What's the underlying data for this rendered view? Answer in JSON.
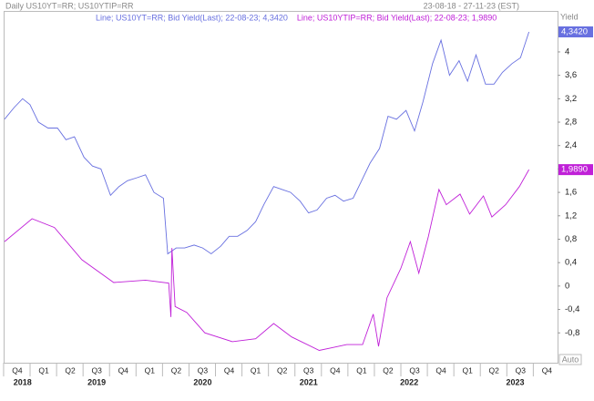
{
  "chart_data": {
    "type": "line",
    "title": "Daily US10YT=RR; US10YTIP=RR",
    "date_range": "23-08-18 - 27-11-23 (EST)",
    "y_label": "Yield",
    "scale_mode": "Auto",
    "xlim": [
      2018.63,
      2023.85
    ],
    "ylim": [
      -1.31,
      4.7
    ],
    "yticks": [
      4,
      {
        "value": 3.6,
        "label": "3,6"
      },
      {
        "value": 3.2,
        "label": "3,2"
      },
      {
        "value": 2.8,
        "label": "2,8"
      },
      {
        "value": 2.4,
        "label": "2,4"
      },
      2,
      {
        "value": 1.6,
        "label": "1,6"
      },
      {
        "value": 1.2,
        "label": "1,2"
      },
      {
        "value": 0.8,
        "label": "0,8"
      },
      {
        "value": 0.4,
        "label": "0,4"
      },
      0,
      {
        "value": -0.4,
        "label": "-0,4"
      },
      {
        "value": -0.8,
        "label": "-0,8"
      }
    ],
    "xticks": [
      {
        "value": 2018.75,
        "label": "Q4"
      },
      {
        "value": 2019.0,
        "label": "Q1"
      },
      {
        "value": 2019.25,
        "label": "Q2"
      },
      {
        "value": 2019.5,
        "label": "Q3"
      },
      {
        "value": 2019.75,
        "label": "Q4"
      },
      {
        "value": 2020.0,
        "label": "Q1"
      },
      {
        "value": 2020.25,
        "label": "Q2"
      },
      {
        "value": 2020.5,
        "label": "Q3"
      },
      {
        "value": 2020.75,
        "label": "Q4"
      },
      {
        "value": 2021.0,
        "label": "Q1"
      },
      {
        "value": 2021.25,
        "label": "Q2"
      },
      {
        "value": 2021.5,
        "label": "Q3"
      },
      {
        "value": 2021.75,
        "label": "Q4"
      },
      {
        "value": 2022.0,
        "label": "Q1"
      },
      {
        "value": 2022.25,
        "label": "Q2"
      },
      {
        "value": 2022.5,
        "label": "Q3"
      },
      {
        "value": 2022.75,
        "label": "Q4"
      },
      {
        "value": 2023.0,
        "label": "Q1"
      },
      {
        "value": 2023.25,
        "label": "Q2"
      },
      {
        "value": 2023.5,
        "label": "Q3"
      },
      {
        "value": 2023.75,
        "label": "Q4"
      }
    ],
    "year_ticks": [
      {
        "value": 2018.8,
        "label": "2018"
      },
      {
        "value": 2019.5,
        "label": "2019"
      },
      {
        "value": 2020.5,
        "label": "2020"
      },
      {
        "value": 2021.5,
        "label": "2021"
      },
      {
        "value": 2022.45,
        "label": "2022"
      },
      {
        "value": 2023.45,
        "label": "2023"
      }
    ],
    "series": [
      {
        "name": "Line; US10YT=RR; Bid Yield(Last); 22-08-23; 4,3420",
        "color": "#6870e0",
        "last_label": "4,3420",
        "x": [
          2018.63,
          2018.72,
          2018.8,
          2018.87,
          2018.95,
          2019.04,
          2019.13,
          2019.21,
          2019.29,
          2019.38,
          2019.46,
          2019.54,
          2019.63,
          2019.71,
          2019.79,
          2019.88,
          2019.96,
          2020.04,
          2020.13,
          2020.17,
          2020.25,
          2020.33,
          2020.42,
          2020.5,
          2020.58,
          2020.67,
          2020.75,
          2020.83,
          2020.92,
          2021.0,
          2021.08,
          2021.17,
          2021.25,
          2021.33,
          2021.42,
          2021.5,
          2021.58,
          2021.67,
          2021.75,
          2021.83,
          2021.92,
          2022.0,
          2022.08,
          2022.17,
          2022.25,
          2022.33,
          2022.42,
          2022.5,
          2022.58,
          2022.67,
          2022.75,
          2022.83,
          2022.92,
          2023.0,
          2023.08,
          2023.17,
          2023.25,
          2023.33,
          2023.42,
          2023.5,
          2023.58
        ],
        "values": [
          2.85,
          3.05,
          3.2,
          3.1,
          2.8,
          2.7,
          2.7,
          2.5,
          2.55,
          2.2,
          2.05,
          2.0,
          1.55,
          1.7,
          1.8,
          1.85,
          1.9,
          1.6,
          1.5,
          0.55,
          0.65,
          0.65,
          0.7,
          0.65,
          0.55,
          0.68,
          0.85,
          0.85,
          0.95,
          1.1,
          1.4,
          1.7,
          1.65,
          1.6,
          1.45,
          1.25,
          1.3,
          1.5,
          1.55,
          1.45,
          1.5,
          1.8,
          2.1,
          2.35,
          2.9,
          2.85,
          3.0,
          2.65,
          3.15,
          3.8,
          4.2,
          3.6,
          3.85,
          3.5,
          3.95,
          3.45,
          3.45,
          3.65,
          3.8,
          3.9,
          4.342
        ]
      },
      {
        "name": "Line; US10YTIP=RR; Bid Yield(Last); 22-08-23; 1,9890",
        "color": "#c020d8",
        "last_label": "1,9890",
        "x": [
          2018.63,
          2018.89,
          2019.1,
          2019.36,
          2019.66,
          2019.96,
          2020.18,
          2020.2,
          2020.21,
          2020.24,
          2020.35,
          2020.52,
          2020.78,
          2021.0,
          2021.17,
          2021.34,
          2021.6,
          2021.86,
          2022.01,
          2022.11,
          2022.16,
          2022.24,
          2022.37,
          2022.46,
          2022.54,
          2022.63,
          2022.73,
          2022.8,
          2022.93,
          2023.02,
          2023.15,
          2023.23,
          2023.36,
          2023.49,
          2023.58
        ],
        "values": [
          0.76,
          1.15,
          1.0,
          0.45,
          0.06,
          0.1,
          0.05,
          -0.53,
          0.65,
          -0.35,
          -0.45,
          -0.8,
          -0.95,
          -0.9,
          -0.64,
          -0.87,
          -1.1,
          -1.0,
          -1.0,
          -0.48,
          -1.03,
          -0.2,
          0.3,
          0.76,
          0.22,
          0.84,
          1.65,
          1.39,
          1.57,
          1.23,
          1.54,
          1.18,
          1.39,
          1.7,
          1.989
        ]
      }
    ]
  }
}
